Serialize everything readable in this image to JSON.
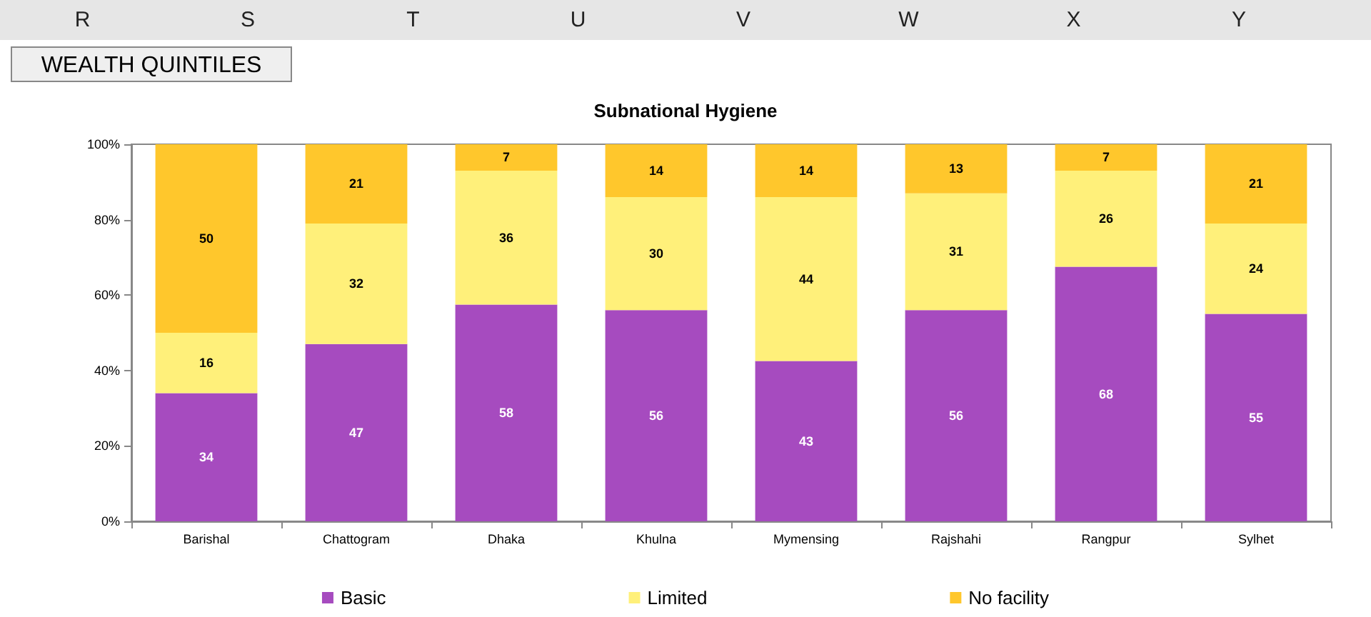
{
  "chart_data": {
    "type": "bar",
    "title": "Subnational Hygiene",
    "stacked": true,
    "categories": [
      "Barishal",
      "Chattogram",
      "Dhaka",
      "Khulna",
      "Mymensing",
      "Rajshahi",
      "Rangpur",
      "Sylhet"
    ],
    "series": [
      {
        "name": "Basic",
        "color": "#a64bbf",
        "values": [
          34,
          47,
          57.5,
          56,
          42.5,
          56,
          67.5,
          55
        ],
        "value_labels": [
          "34",
          "47",
          "58",
          "56",
          "43",
          "56",
          "68",
          "55"
        ]
      },
      {
        "name": "Limited",
        "color": "#fff07a",
        "values": [
          16,
          32,
          35.5,
          30,
          43.5,
          31,
          25.5,
          24
        ],
        "value_labels": [
          "16",
          "32",
          "36",
          "30",
          "44",
          "31",
          "26",
          "24"
        ]
      },
      {
        "name": "No facility",
        "color": "#ffc72c",
        "values": [
          50,
          21,
          7,
          14,
          14,
          13,
          7,
          21
        ],
        "value_labels": [
          "50",
          "21",
          "7",
          "14",
          "14",
          "13",
          "7",
          "21"
        ]
      }
    ],
    "ylim": [
      0,
      100
    ],
    "yticks": [
      {
        "value": 0,
        "label": "0%"
      },
      {
        "value": 20,
        "label": "20%"
      },
      {
        "value": 40,
        "label": "40%"
      },
      {
        "value": 60,
        "label": "60%"
      },
      {
        "value": 80,
        "label": "80%"
      },
      {
        "value": 100,
        "label": "100%"
      }
    ],
    "grid": false,
    "legend": "bottom",
    "annotations": [
      "WEALTH QUINTILES",
      "R",
      "S",
      "T",
      "U",
      "V",
      "W",
      "X",
      "Y"
    ]
  }
}
